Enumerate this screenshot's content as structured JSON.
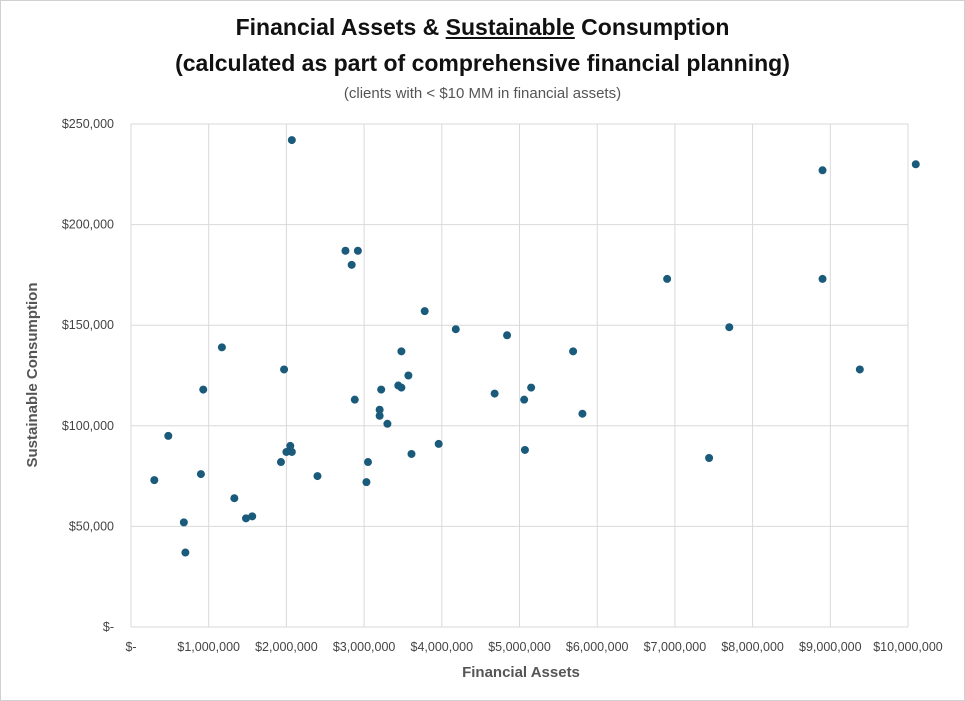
{
  "chart_data": {
    "type": "scatter",
    "title_parts": [
      "Financial Assets & ",
      "Sustainable",
      " Consumption"
    ],
    "title_line2": "(calculated as part of comprehensive financial planning)",
    "subtitle": "(clients with < $10 MM in financial assets)",
    "xlabel": "Financial Assets",
    "ylabel": "Sustainable Consumption",
    "xlim": [
      0,
      10000000
    ],
    "ylim": [
      0,
      250000
    ],
    "grid": true,
    "marker_color": "#1a5a7a",
    "x_ticks": [
      0,
      1000000,
      2000000,
      3000000,
      4000000,
      5000000,
      6000000,
      7000000,
      8000000,
      9000000,
      10000000
    ],
    "x_tick_labels": [
      "$-",
      "$1,000,000",
      "$2,000,000",
      "$3,000,000",
      "$4,000,000",
      "$5,000,000",
      "$6,000,000",
      "$7,000,000",
      "$8,000,000",
      "$9,000,000",
      "$10,000,000"
    ],
    "y_ticks": [
      0,
      50000,
      100000,
      150000,
      200000,
      250000
    ],
    "y_tick_labels": [
      "$-",
      "$50,000",
      "$100,000",
      "$150,000",
      "$200,000",
      "$250,000"
    ],
    "points": [
      [
        300000,
        73000
      ],
      [
        480000,
        95000
      ],
      [
        680000,
        52000
      ],
      [
        700000,
        37000
      ],
      [
        900000,
        76000
      ],
      [
        930000,
        118000
      ],
      [
        1170000,
        139000
      ],
      [
        1330000,
        64000
      ],
      [
        1480000,
        54000
      ],
      [
        1560000,
        55000
      ],
      [
        1930000,
        82000
      ],
      [
        1970000,
        128000
      ],
      [
        2000000,
        87000
      ],
      [
        2050000,
        90000
      ],
      [
        2070000,
        87000
      ],
      [
        2070000,
        242000
      ],
      [
        2400000,
        75000
      ],
      [
        2760000,
        187000
      ],
      [
        2840000,
        180000
      ],
      [
        2880000,
        113000
      ],
      [
        2920000,
        187000
      ],
      [
        3030000,
        72000
      ],
      [
        3050000,
        82000
      ],
      [
        3200000,
        105000
      ],
      [
        3200000,
        108000
      ],
      [
        3220000,
        118000
      ],
      [
        3300000,
        101000
      ],
      [
        3440000,
        120000
      ],
      [
        3480000,
        119000
      ],
      [
        3480000,
        137000
      ],
      [
        3570000,
        125000
      ],
      [
        3610000,
        86000
      ],
      [
        3780000,
        157000
      ],
      [
        3960000,
        91000
      ],
      [
        4180000,
        148000
      ],
      [
        4680000,
        116000
      ],
      [
        4840000,
        145000
      ],
      [
        5060000,
        113000
      ],
      [
        5070000,
        88000
      ],
      [
        5150000,
        119000
      ],
      [
        5690000,
        137000
      ],
      [
        5810000,
        106000
      ],
      [
        6900000,
        173000
      ],
      [
        7440000,
        84000
      ],
      [
        7700000,
        149000
      ],
      [
        8900000,
        227000
      ],
      [
        8900000,
        173000
      ],
      [
        9380000,
        128000
      ],
      [
        10100000,
        230000
      ]
    ]
  }
}
